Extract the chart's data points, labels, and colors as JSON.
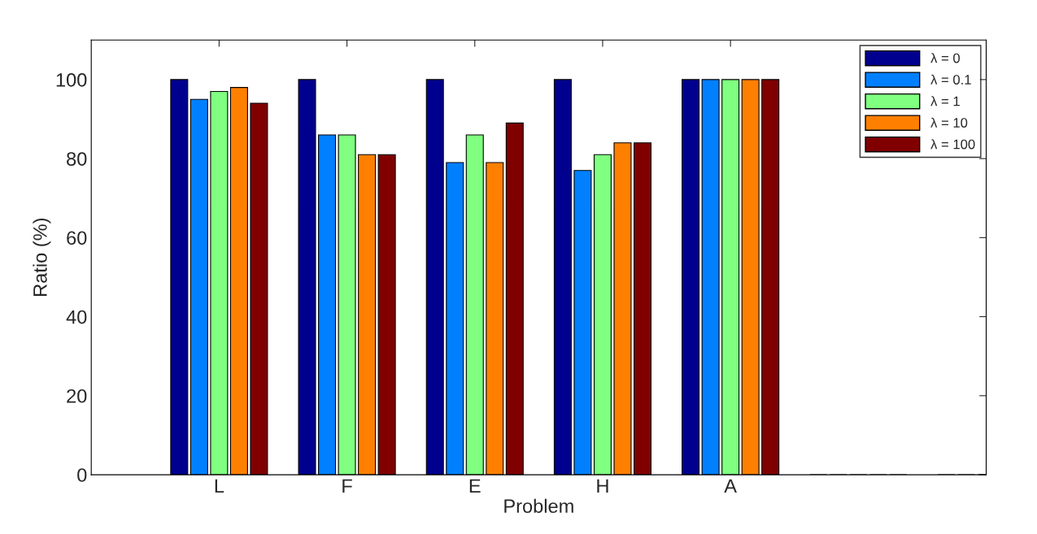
{
  "chart_data": {
    "type": "bar",
    "xlabel": "Problem",
    "ylabel": "Ratio (%)",
    "categories": [
      "L",
      "F",
      "E",
      "H",
      "A",
      null,
      null
    ],
    "series": [
      {
        "name": "λ = 0",
        "color": "#00008f",
        "values": [
          100,
          100,
          100,
          100,
          100,
          0,
          0
        ]
      },
      {
        "name": "λ = 0.1",
        "color": "#0080ff",
        "values": [
          95,
          86,
          79,
          77,
          100,
          0,
          0
        ]
      },
      {
        "name": "λ = 1",
        "color": "#80ff80",
        "values": [
          97,
          86,
          86,
          81,
          100,
          0,
          0
        ]
      },
      {
        "name": "λ = 10",
        "color": "#ff8000",
        "values": [
          98,
          81,
          79,
          84,
          100,
          0,
          0
        ]
      },
      {
        "name": "λ = 100",
        "color": "#800000",
        "values": [
          94,
          81,
          89,
          84,
          100,
          0,
          0
        ]
      }
    ],
    "ylim": [
      0,
      110
    ],
    "yticks": [
      0,
      20,
      40,
      60,
      80,
      100
    ],
    "grid": false,
    "legend": "top right"
  }
}
